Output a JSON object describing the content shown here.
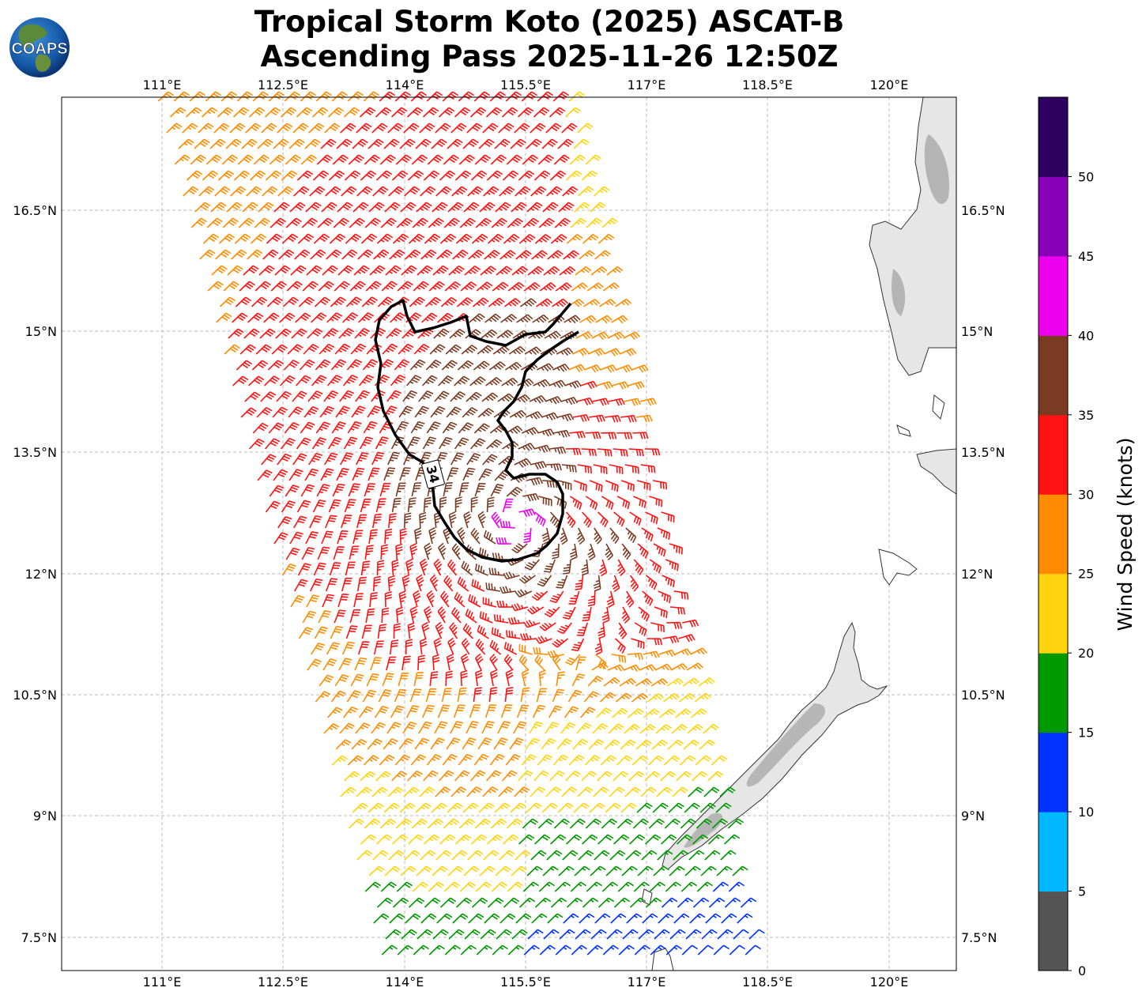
{
  "title": {
    "line1": "Tropical Storm Koto (2025) ASCAT-B",
    "line2": "Ascending Pass 2025-11-26 12:50Z"
  },
  "logo": {
    "text": "COAPS"
  },
  "map": {
    "lon_labels": [
      "111°E",
      "112.5°E",
      "114°E",
      "115.5°E",
      "117°E",
      "118.5°E",
      "120°E"
    ],
    "lat_labels": [
      "16.5°N",
      "15°N",
      "13.5°N",
      "12°N",
      "10.5°N",
      "9°N",
      "7.5°N"
    ],
    "contour_label": "34",
    "storm_center": {
      "lon": 115.4,
      "lat": 12.7
    },
    "grid": true
  },
  "colorbar": {
    "label": "Wind Speed (knots)",
    "ticks": [
      "0",
      "5",
      "10",
      "15",
      "20",
      "25",
      "30",
      "35",
      "40",
      "45",
      "50"
    ],
    "colors": [
      "#555555",
      "#00b8ff",
      "#0033ff",
      "#009900",
      "#ffd40e",
      "#ff8c00",
      "#ff1212",
      "#7b3b22",
      "#ee00ee",
      "#8800b8",
      "#2e0060"
    ]
  }
}
